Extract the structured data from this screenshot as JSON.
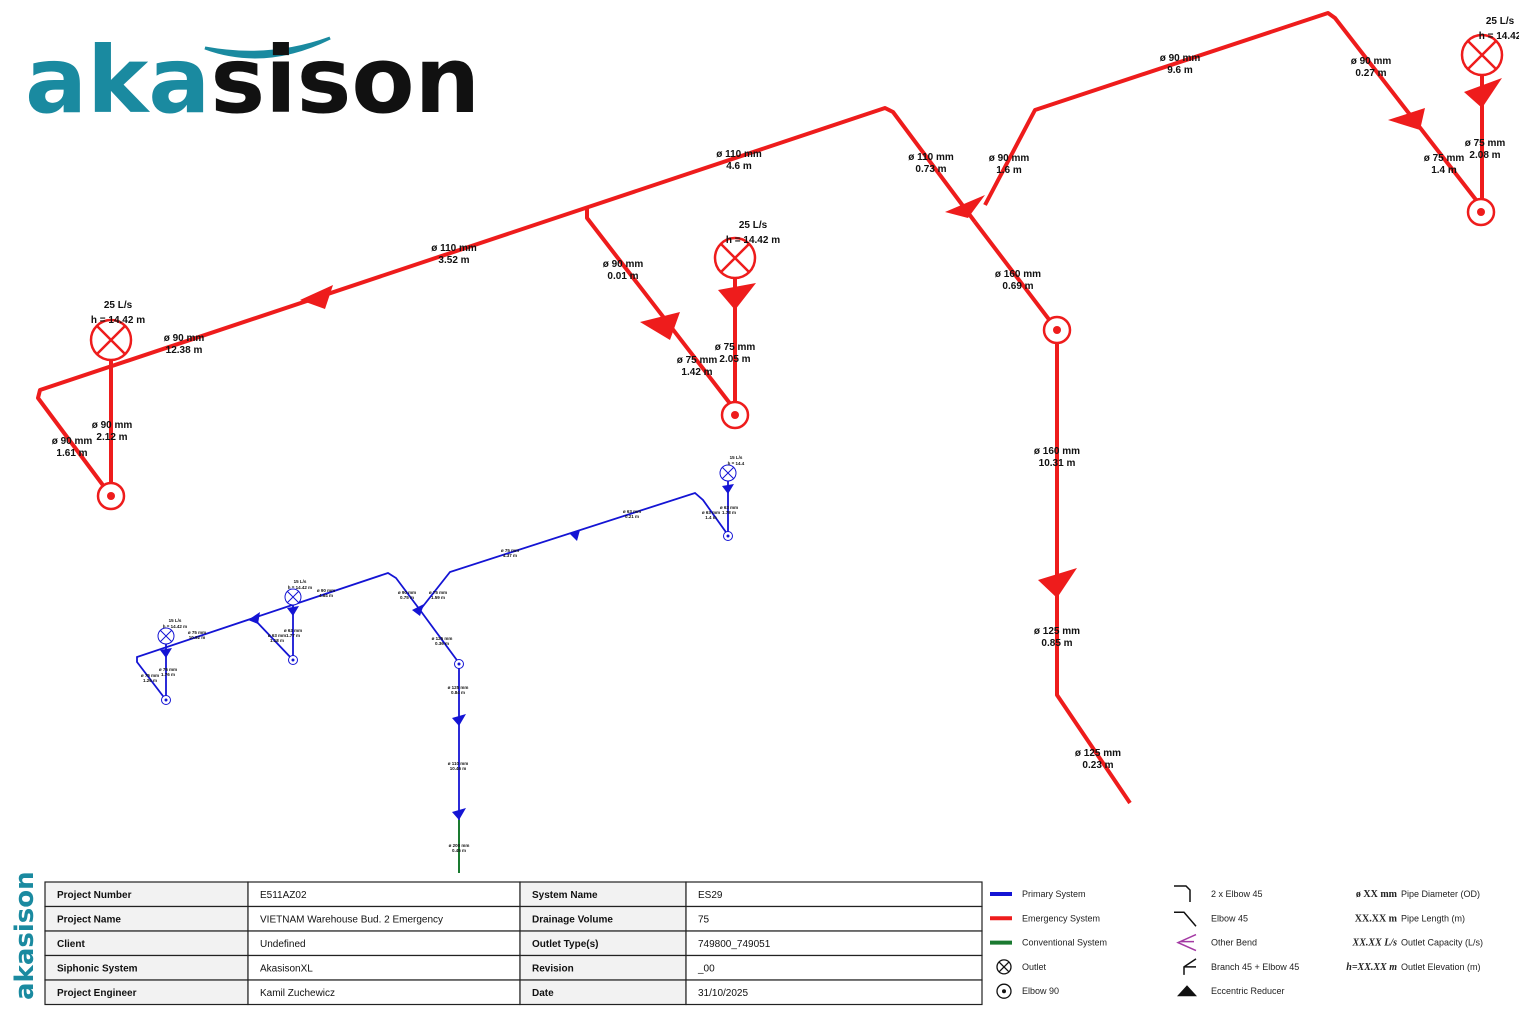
{
  "logo": {
    "part1": "aka",
    "part2": "sison",
    "side": "akasison"
  },
  "red_outlets": [
    {
      "capacity": "25 L/s",
      "elevation": "h = 14.42 m"
    },
    {
      "capacity": "25 L/s",
      "elevation": "h = 14.42 m"
    },
    {
      "capacity": "25 L/s",
      "elevation": "h = 14.42"
    }
  ],
  "red_pipes": [
    {
      "diameter": "ø 110 mm",
      "length": "4.6 m"
    },
    {
      "diameter": "ø 110 mm",
      "length": "3.52 m"
    },
    {
      "diameter": "ø 90 mm",
      "length": "12.38 m"
    },
    {
      "diameter": "ø 90 mm",
      "length": "2.12 m"
    },
    {
      "diameter": "ø 90 mm",
      "length": "1.61 m"
    },
    {
      "diameter": "ø 90 mm",
      "length": "0.01 m"
    },
    {
      "diameter": "ø 75 mm",
      "length": "1.42 m"
    },
    {
      "diameter": "ø 75 mm",
      "length": "2.05 m"
    },
    {
      "diameter": "ø 110 mm",
      "length": "0.73 m"
    },
    {
      "diameter": "ø 90 mm",
      "length": "1.6 m"
    },
    {
      "diameter": "ø 160 mm",
      "length": "0.69 m"
    },
    {
      "diameter": "ø 160 mm",
      "length": "10.31 m"
    },
    {
      "diameter": "ø 125 mm",
      "length": "0.85 m"
    },
    {
      "diameter": "ø 125 mm",
      "length": "0.23 m"
    },
    {
      "diameter": "ø 90 mm",
      "length": "9.6 m"
    },
    {
      "diameter": "ø 90 mm",
      "length": "0.27 m"
    },
    {
      "diameter": "ø 75 mm",
      "length": "1.4 m"
    },
    {
      "diameter": "ø 75 mm",
      "length": "2.08 m"
    }
  ],
  "blue_outlets": [
    {
      "capacity": "15 L/s",
      "elevation": "h = 14.4"
    },
    {
      "capacity": "15 L/s",
      "elevation": "h = 14.42 m"
    },
    {
      "capacity": "15 L/s",
      "elevation": "h = 14.42 m"
    }
  ],
  "blue_pipes": [
    {
      "diameter": "ø 63 mm",
      "length": "0.21 m"
    },
    {
      "diameter": "ø 63 mm",
      "length": "1.78 m"
    },
    {
      "diameter": "ø 63 mm",
      "length": "1.4 m"
    },
    {
      "diameter": "ø 75 mm",
      "length": "4.37 m"
    },
    {
      "diameter": "ø 90 mm",
      "length": "0.75 m"
    },
    {
      "diameter": "ø 75 mm",
      "length": "1.59 m"
    },
    {
      "diameter": "ø 90 mm",
      "length": "4.64 m"
    },
    {
      "diameter": "ø 63 mm",
      "length": "1.77 m"
    },
    {
      "diameter": "ø 63 mm",
      "length": "1.18 m"
    },
    {
      "diameter": "ø 75 mm",
      "length": "10.92 m"
    },
    {
      "diameter": "ø 75 mm",
      "length": "1.76 m"
    },
    {
      "diameter": "ø 75 mm",
      "length": "1.26 m"
    },
    {
      "diameter": "ø 125 mm",
      "length": "0.36 m"
    },
    {
      "diameter": "ø 125 mm",
      "length": "0.84 m"
    },
    {
      "diameter": "ø 110 mm",
      "length": "10.46 m"
    },
    {
      "diameter": "ø 200 mm",
      "length": "0.45 m"
    }
  ],
  "table": {
    "rows": [
      [
        "Project Number",
        "E511AZ02",
        "System Name",
        "ES29"
      ],
      [
        "Project Name",
        "VIETNAM Warehouse Bud. 2 Emergency",
        "Drainage Volume",
        "75"
      ],
      [
        "Client",
        "Undefined",
        "Outlet Type(s)",
        "749800_749051"
      ],
      [
        "Siphonic System",
        "AkasisonXL",
        "Revision",
        "_00"
      ],
      [
        "Project Engineer",
        "Kamil Zuchewicz",
        "Date",
        "31/10/2025"
      ]
    ]
  },
  "legend": {
    "systems": [
      "Primary System",
      "Emergency System",
      "Conventional System",
      "Outlet",
      "Elbow 90"
    ],
    "fittings": [
      "2 x Elbow 45",
      "Elbow 45",
      "Other Bend",
      "Branch 45 + Elbow 45",
      "Eccentric Reducer"
    ],
    "notation": [
      {
        "symbol": "ø XX mm",
        "label": "Pipe Diameter (OD)"
      },
      {
        "symbol": "XX.XX m",
        "label": "Pipe Length (m)"
      },
      {
        "symbol": "XX.XX L/s",
        "label": "Outlet Capacity (L/s)"
      },
      {
        "symbol": "h=XX.XX m",
        "label": "Outlet Elevation (m)"
      }
    ]
  }
}
